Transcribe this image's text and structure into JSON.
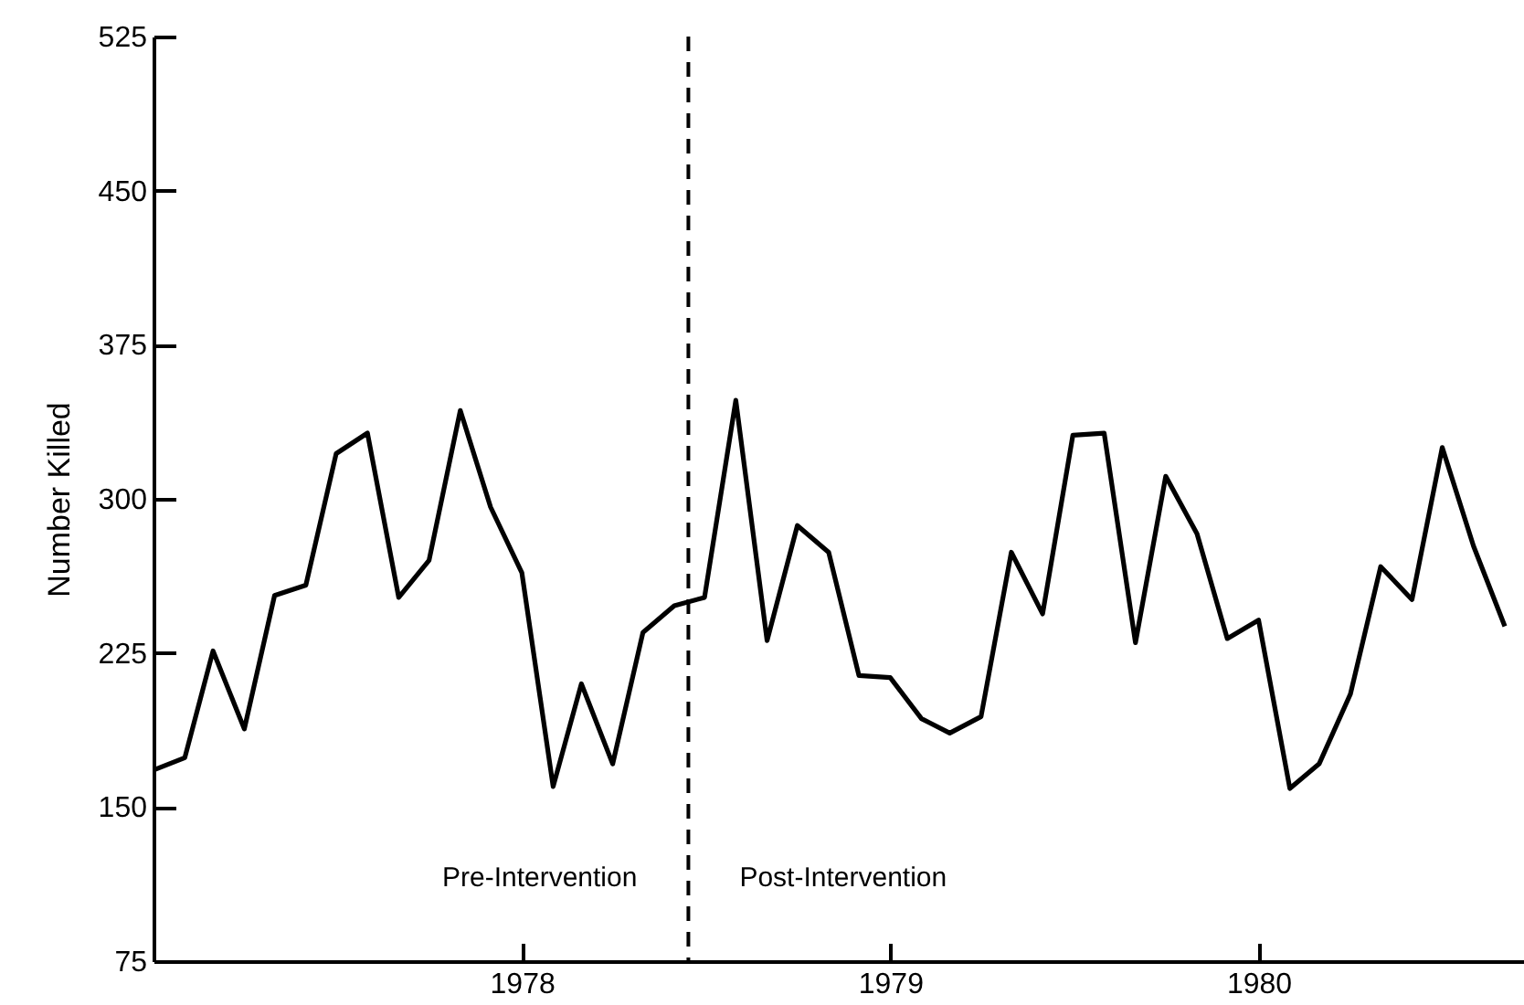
{
  "chart_data": {
    "type": "line",
    "ylabel": "Number Killed",
    "x": [
      "1977-01",
      "1977-02",
      "1977-03",
      "1977-04",
      "1977-05",
      "1977-06",
      "1977-07",
      "1977-08",
      "1977-09",
      "1977-10",
      "1977-11",
      "1977-12",
      "1978-01",
      "1978-02",
      "1978-03",
      "1978-04",
      "1978-05",
      "1978-06",
      "1978-07",
      "1978-08",
      "1978-09",
      "1978-10",
      "1978-11",
      "1978-12",
      "1979-01",
      "1979-02",
      "1979-03",
      "1979-04",
      "1979-05",
      "1979-06",
      "1979-07",
      "1979-08",
      "1979-09",
      "1979-10",
      "1979-11",
      "1979-12",
      "1980-01",
      "1980-02",
      "1980-03",
      "1980-04",
      "1980-05",
      "1980-06",
      "1980-07",
      "1980-08",
      "1980-09"
    ],
    "series": [
      {
        "color": "#000000",
        "values": [
          168,
          174,
          226,
          188,
          253,
          258,
          322,
          332,
          252,
          270,
          343,
          296,
          264,
          160,
          210,
          171,
          235,
          248,
          252,
          348,
          231,
          287,
          274,
          214,
          213,
          193,
          186,
          194,
          274,
          244,
          331,
          332,
          230,
          311,
          283,
          232,
          241,
          159,
          171,
          205,
          267,
          251,
          325,
          277,
          238
        ]
      }
    ],
    "xlim": [
      "1977-01",
      "1980-09-20"
    ],
    "xticks": [
      {
        "value": "1978-01",
        "label": "1978"
      },
      {
        "value": "1979-01",
        "label": "1979"
      },
      {
        "value": "1980-01",
        "label": "1980"
      }
    ],
    "ylim": [
      75,
      525
    ],
    "yticks": [
      75,
      150,
      225,
      300,
      375,
      450,
      525
    ],
    "ref_lines": [
      {
        "axis": "x",
        "value": "1978-06-15",
        "line_style": "dashed",
        "color": "#000000"
      }
    ],
    "annotations": [
      "Pre-Intervention",
      "Post-Intervention"
    ],
    "grid": false,
    "marker": "none",
    "line_style": "solid"
  }
}
